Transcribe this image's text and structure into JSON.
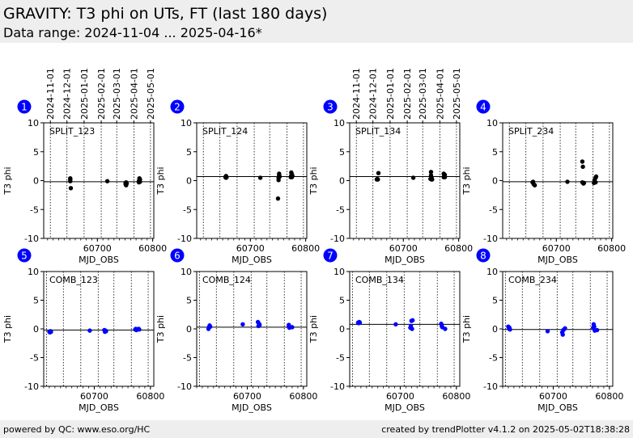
{
  "header": {
    "title": "GRAVITY: T3 phi on UTs, FT (last 180 days)",
    "subtitle": "Data range: 2024-11-04 ... 2025-04-16*"
  },
  "footer": {
    "left": "powered by QC: www.eso.org/HC",
    "right": "created by trendPlotter v4.1.2 on 2025-05-02T18:38:28"
  },
  "colors": {
    "split": "#000000",
    "comb": "#0000ff",
    "badge": "#0000ff",
    "reference_line": "#000000",
    "month_lines": "#000000"
  },
  "date_axis_labels": [
    "2024-11-01",
    "2024-12-01",
    "2025-01-01",
    "2025-02-01",
    "2025-03-01",
    "2025-04-01",
    "2025-05-01"
  ],
  "chart_data": [
    {
      "type": "scatter",
      "index": "1",
      "label": "SPLIT_123",
      "color": "#000000",
      "xlabel": "MJD_OBS",
      "ylabel": "T3 phi",
      "xlim": [
        60603,
        60802
      ],
      "ylim": [
        -10,
        10
      ],
      "xticks": [
        60700,
        60800
      ],
      "yticks": [
        -10,
        -5,
        0,
        5,
        10
      ],
      "month_lines_mjd": [
        60615,
        60645,
        60676,
        60707,
        60735,
        60766,
        60796
      ],
      "reference_y": -0.2,
      "points": [
        [
          60651,
          -0.1
        ],
        [
          60651,
          0.2
        ],
        [
          60651,
          0.4
        ],
        [
          60652,
          -1.3
        ],
        [
          60718,
          -0.1
        ],
        [
          60751,
          -0.4
        ],
        [
          60751,
          -0.6
        ],
        [
          60752,
          -0.8
        ],
        [
          60752,
          -0.3
        ],
        [
          60753,
          -0.5
        ],
        [
          60775,
          -0.3
        ],
        [
          60775,
          -0.1
        ],
        [
          60776,
          0.1
        ],
        [
          60776,
          0.4
        ],
        [
          60777,
          0.2
        ],
        [
          60777,
          -0.2
        ]
      ]
    },
    {
      "type": "scatter",
      "index": "2",
      "label": "SPLIT_124",
      "color": "#000000",
      "xlabel": "MJD_OBS",
      "ylabel": "T3 phi",
      "xlim": [
        60603,
        60802
      ],
      "ylim": [
        -10,
        10
      ],
      "xticks": [
        60700,
        60800
      ],
      "yticks": [
        -10,
        -5,
        0,
        5,
        10
      ],
      "month_lines_mjd": [
        60615,
        60645,
        60676,
        60707,
        60735,
        60766,
        60796
      ],
      "reference_y": 0.7,
      "points": [
        [
          60655,
          0.6
        ],
        [
          60656,
          0.5
        ],
        [
          60656,
          0.8
        ],
        [
          60657,
          0.6
        ],
        [
          60718,
          0.5
        ],
        [
          60750,
          -3.1
        ],
        [
          60751,
          0.1
        ],
        [
          60751,
          0.5
        ],
        [
          60752,
          0.9
        ],
        [
          60752,
          1.2
        ],
        [
          60753,
          0.7
        ],
        [
          60773,
          0.6
        ],
        [
          60774,
          1.4
        ],
        [
          60774,
          0.9
        ],
        [
          60775,
          1.1
        ],
        [
          60775,
          0.6
        ],
        [
          60776,
          0.8
        ]
      ]
    },
    {
      "type": "scatter",
      "index": "3",
      "label": "SPLIT_134",
      "color": "#000000",
      "xlabel": "MJD_OBS",
      "ylabel": "T3 phi",
      "xlim": [
        60603,
        60802
      ],
      "ylim": [
        -10,
        10
      ],
      "xticks": [
        60700,
        60800
      ],
      "yticks": [
        -10,
        -5,
        0,
        5,
        10
      ],
      "month_lines_mjd": [
        60615,
        60645,
        60676,
        60707,
        60735,
        60766,
        60796
      ],
      "reference_y": 0.7,
      "points": [
        [
          60652,
          0.2
        ],
        [
          60653,
          0.3
        ],
        [
          60654,
          0.2
        ],
        [
          60655,
          1.3
        ],
        [
          60718,
          0.5
        ],
        [
          60749,
          0.3
        ],
        [
          60750,
          1.5
        ],
        [
          60750,
          0.9
        ],
        [
          60751,
          0.5
        ],
        [
          60751,
          0.2
        ],
        [
          60752,
          0.2
        ],
        [
          60773,
          0.6
        ],
        [
          60773,
          1.2
        ],
        [
          60774,
          0.9
        ],
        [
          60775,
          1.0
        ],
        [
          60775,
          0.6
        ]
      ]
    },
    {
      "type": "scatter",
      "index": "4",
      "label": "SPLIT_234",
      "color": "#000000",
      "xlabel": "MJD_OBS",
      "ylabel": "T3 phi",
      "xlim": [
        60603,
        60802
      ],
      "ylim": [
        -10,
        10
      ],
      "xticks": [
        60700,
        60800
      ],
      "yticks": [
        -10,
        -5,
        0,
        5,
        10
      ],
      "month_lines_mjd": [
        60615,
        60645,
        60676,
        60707,
        60735,
        60766,
        60796
      ],
      "reference_y": -0.2,
      "points": [
        [
          60657,
          -0.3
        ],
        [
          60658,
          -0.2
        ],
        [
          60659,
          -0.6
        ],
        [
          60661,
          -0.8
        ],
        [
          60720,
          -0.2
        ],
        [
          60747,
          3.3
        ],
        [
          60748,
          2.4
        ],
        [
          60747,
          -0.3
        ],
        [
          60749,
          -0.5
        ],
        [
          60750,
          -0.4
        ],
        [
          60768,
          -0.4
        ],
        [
          60769,
          0.1
        ],
        [
          60770,
          -0.2
        ],
        [
          60771,
          0.5
        ],
        [
          60772,
          0.7
        ],
        [
          60771,
          -0.3
        ]
      ]
    },
    {
      "type": "scatter",
      "index": "5",
      "label": "COMB_123",
      "color": "#0000ff",
      "xlabel": "MJD_OBS",
      "ylabel": "T3 phi",
      "xlim": [
        60610,
        60806
      ],
      "ylim": [
        -10,
        10
      ],
      "xticks": [
        60700,
        60800
      ],
      "yticks": [
        -10,
        -5,
        0,
        5,
        10
      ],
      "month_lines_mjd": [
        60615,
        60645,
        60676,
        60707,
        60735,
        60766,
        60796
      ],
      "reference_y": -0.2,
      "points": [
        [
          60620,
          -0.5
        ],
        [
          60621,
          -0.6
        ],
        [
          60622,
          -0.4
        ],
        [
          60623,
          -0.5
        ],
        [
          60692,
          -0.3
        ],
        [
          60718,
          -0.2
        ],
        [
          60719,
          -0.5
        ],
        [
          60720,
          -0.3
        ],
        [
          60721,
          -0.4
        ],
        [
          60773,
          -0.1
        ],
        [
          60774,
          0.0
        ],
        [
          60775,
          -0.2
        ],
        [
          60779,
          0.0
        ],
        [
          60780,
          -0.1
        ]
      ]
    },
    {
      "type": "scatter",
      "index": "6",
      "label": "COMB_124",
      "color": "#0000ff",
      "xlabel": "MJD_OBS",
      "ylabel": "T3 phi",
      "xlim": [
        60610,
        60806
      ],
      "ylim": [
        -10,
        10
      ],
      "xticks": [
        60700,
        60800
      ],
      "yticks": [
        -10,
        -5,
        0,
        5,
        10
      ],
      "month_lines_mjd": [
        60615,
        60645,
        60676,
        60707,
        60735,
        60766,
        60796
      ],
      "reference_y": 0.3,
      "points": [
        [
          60631,
          0.0
        ],
        [
          60632,
          0.3
        ],
        [
          60633,
          0.6
        ],
        [
          60634,
          0.4
        ],
        [
          60692,
          0.8
        ],
        [
          60719,
          1.2
        ],
        [
          60720,
          0.5
        ],
        [
          60721,
          0.9
        ],
        [
          60722,
          0.7
        ],
        [
          60774,
          0.4
        ],
        [
          60774,
          0.7
        ],
        [
          60775,
          0.2
        ],
        [
          60780,
          0.3
        ]
      ]
    },
    {
      "type": "scatter",
      "index": "7",
      "label": "COMB_134",
      "color": "#0000ff",
      "xlabel": "MJD_OBS",
      "ylabel": "T3 phi",
      "xlim": [
        60610,
        60806
      ],
      "ylim": [
        -10,
        10
      ],
      "xticks": [
        60700,
        60800
      ],
      "yticks": [
        -10,
        -5,
        0,
        5,
        10
      ],
      "month_lines_mjd": [
        60615,
        60645,
        60676,
        60707,
        60735,
        60766,
        60796
      ],
      "reference_y": 0.8,
      "points": [
        [
          60625,
          1.1
        ],
        [
          60626,
          1.0
        ],
        [
          60627,
          1.2
        ],
        [
          60628,
          1.1
        ],
        [
          60692,
          0.8
        ],
        [
          60718,
          0.2
        ],
        [
          60719,
          0.5
        ],
        [
          60720,
          1.4
        ],
        [
          60721,
          0.0
        ],
        [
          60722,
          1.5
        ],
        [
          60773,
          0.9
        ],
        [
          60774,
          0.5
        ],
        [
          60775,
          0.3
        ],
        [
          60780,
          0.0
        ]
      ]
    },
    {
      "type": "scatter",
      "index": "8",
      "label": "COMB_234",
      "color": "#0000ff",
      "xlabel": "MJD_OBS",
      "ylabel": "T3 phi",
      "xlim": [
        60610,
        60806
      ],
      "ylim": [
        -10,
        10
      ],
      "xticks": [
        60700,
        60800
      ],
      "yticks": [
        -10,
        -5,
        0,
        5,
        10
      ],
      "month_lines_mjd": [
        60615,
        60645,
        60676,
        60707,
        60735,
        60766,
        60796
      ],
      "reference_y": -0.1,
      "points": [
        [
          60620,
          0.4
        ],
        [
          60621,
          0.1
        ],
        [
          60622,
          0.2
        ],
        [
          60623,
          -0.1
        ],
        [
          60690,
          -0.4
        ],
        [
          60716,
          -0.6
        ],
        [
          60717,
          -1.0
        ],
        [
          60718,
          -0.2
        ],
        [
          60721,
          0.1
        ],
        [
          60771,
          0.2
        ],
        [
          60772,
          0.8
        ],
        [
          60773,
          0.4
        ],
        [
          60774,
          -0.3
        ],
        [
          60778,
          -0.2
        ]
      ]
    }
  ]
}
